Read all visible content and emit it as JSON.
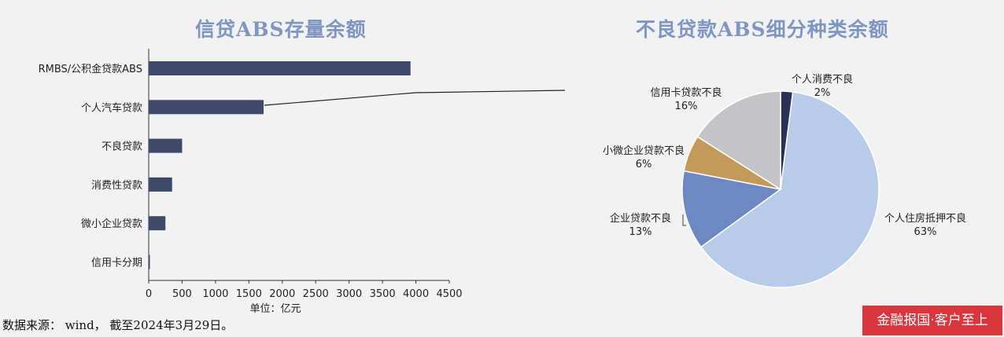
{
  "source_text": "数据来源： wind， 截至2024年3月29日。",
  "watermark": "金融报国·客户至上",
  "chart_data": [
    {
      "type": "bar",
      "orientation": "horizontal",
      "title": "信贷ABS存量余额",
      "xlabel": "单位：亿元",
      "ylabel": "",
      "xlim": [
        0,
        4500
      ],
      "ticks": [
        0,
        500,
        1000,
        1500,
        2000,
        2500,
        3000,
        3500,
        4000,
        4500
      ],
      "categories": [
        "RMBS/公积金贷款ABS",
        "个人汽车贷款",
        "不良贷款",
        "消费性贷款",
        "微小企业贷款",
        "信用卡分期"
      ],
      "values": [
        3920,
        1720,
        500,
        350,
        250,
        15
      ],
      "bar_color": "#3f4a6b",
      "grid": false
    },
    {
      "type": "pie",
      "title": "不良贷款ABS细分种类余额",
      "slices": [
        {
          "label": "个人消费不良",
          "pct": "2%",
          "value": 2,
          "color": "#2b3354"
        },
        {
          "label": "个人住房抵押不良",
          "pct": "63%",
          "value": 63,
          "color": "#b8cbe8"
        },
        {
          "label": "企业贷款不良",
          "pct": "13%",
          "value": 13,
          "color": "#6d88c2"
        },
        {
          "label": "小微企业贷款不良",
          "pct": "6%",
          "value": 6,
          "color": "#c49a5a"
        },
        {
          "label": "信用卡贷款不良",
          "pct": "16%",
          "value": 16,
          "color": "#c4c4c6"
        }
      ]
    }
  ]
}
